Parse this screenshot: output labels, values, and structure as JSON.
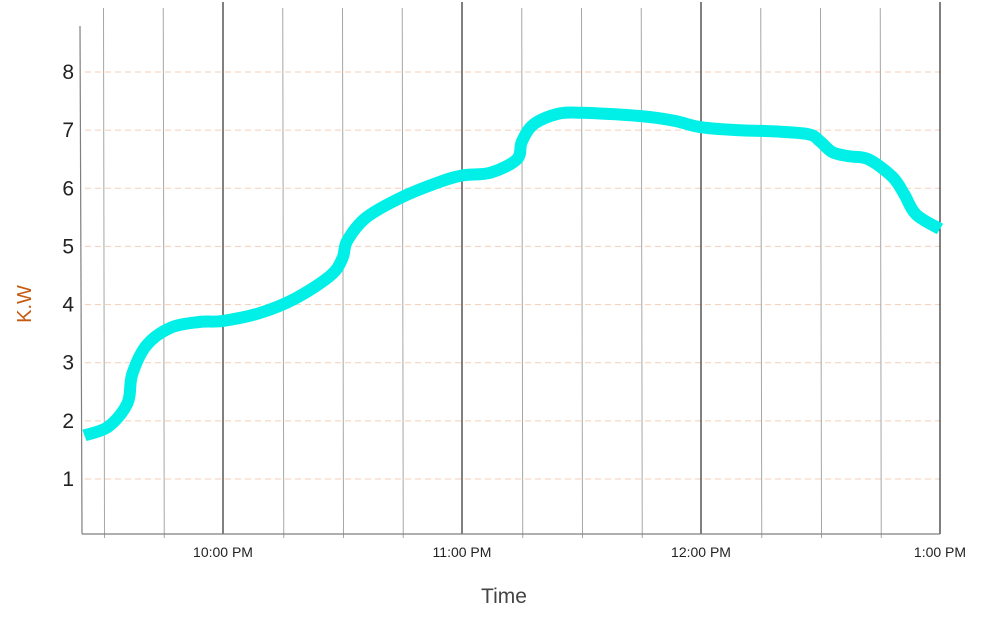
{
  "chart_data": {
    "type": "line",
    "title": "",
    "xlabel": "Time",
    "ylabel": "K.W",
    "ylabel_color": "#c55a11",
    "series_color": "#00f0e8",
    "grid_major_color": "#000000",
    "grid_minor_color": "#a6a6a6",
    "grid_h_color": "#f4cfb6",
    "xlim": [
      21.4,
      25.0
    ],
    "ylim": [
      0,
      8.8
    ],
    "yticks": [
      1,
      2,
      3,
      4,
      5,
      6,
      7,
      8
    ],
    "xticks": [
      {
        "x": 22,
        "label": "10:00 PM"
      },
      {
        "x": 23,
        "label": "11:00 PM"
      },
      {
        "x": 24,
        "label": "12:00 PM"
      },
      {
        "x": 25,
        "label": "1:00 PM"
      }
    ],
    "minor_x": [
      21.5,
      21.75,
      22.25,
      22.5,
      22.75,
      23.25,
      23.5,
      23.75,
      24.25,
      24.5,
      24.75
    ],
    "series": [
      {
        "x": [
          21.42,
          21.52,
          21.6,
          21.62,
          21.68,
          21.78,
          21.9,
          22.0,
          22.15,
          22.3,
          22.45,
          22.5,
          22.52,
          22.6,
          22.75,
          22.9,
          23.0,
          23.12,
          23.23,
          23.25,
          23.3,
          23.4,
          23.5,
          23.65,
          23.8,
          23.9,
          24.0,
          24.15,
          24.3,
          24.45,
          24.5,
          24.55,
          24.62,
          24.7,
          24.8,
          24.85,
          24.9,
          25.0
        ],
        "y": [
          1.75,
          1.9,
          2.3,
          2.8,
          3.3,
          3.6,
          3.7,
          3.72,
          3.85,
          4.1,
          4.5,
          4.8,
          5.1,
          5.5,
          5.85,
          6.1,
          6.22,
          6.27,
          6.5,
          6.8,
          7.1,
          7.28,
          7.3,
          7.27,
          7.22,
          7.15,
          7.05,
          7.0,
          6.98,
          6.93,
          6.8,
          6.62,
          6.55,
          6.5,
          6.2,
          5.9,
          5.55,
          5.3
        ]
      }
    ]
  }
}
